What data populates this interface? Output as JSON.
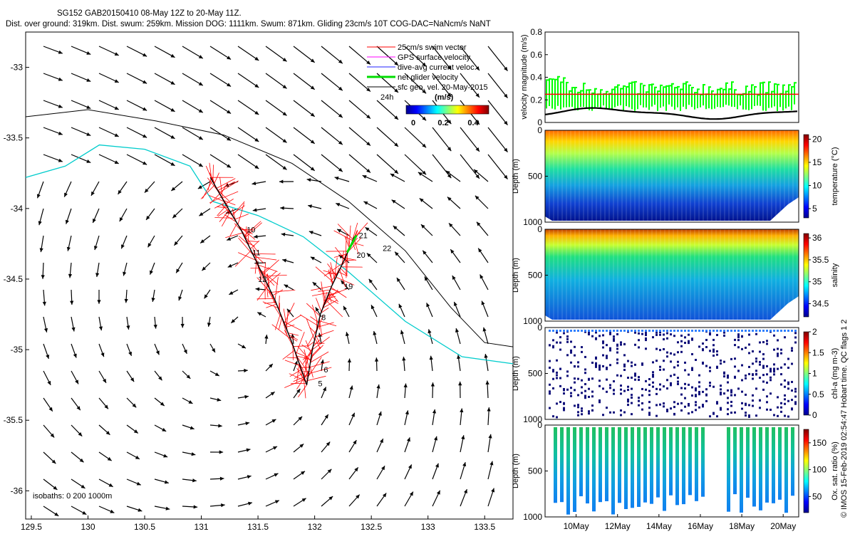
{
  "header": {
    "line1": "SG152 GAB20150410 08-May 12Z to 20-May 11Z.",
    "line2": "Dist. over ground: 319km. Dist. swum: 259km. Mission DOG: 1111km. Swum: 871km. Gliding 23cm/s 10T COG-DAC=NaNcm/s NaNT"
  },
  "side_text": "© IMOS 15-Feb-2019 02:54:47 Hobart time. QC flags 1  2",
  "chart_data": [
    {
      "type": "map",
      "name": "track-map",
      "xlim": [
        129.45,
        133.75
      ],
      "ylim": [
        -36.2,
        -32.75
      ],
      "xticks": [
        "129.5",
        "130",
        "130.5",
        "131",
        "131.5",
        "132",
        "132.5",
        "133",
        "133.5"
      ],
      "yticks": [
        "-33",
        "-33.5",
        "-34",
        "-34.5",
        "-35",
        "-35.5",
        "-36"
      ],
      "xtick_values": [
        129.5,
        130,
        130.5,
        131,
        131.5,
        132,
        132.5,
        133,
        133.5
      ],
      "ytick_values": [
        -33,
        -33.5,
        -34,
        -34.5,
        -35,
        -35.5,
        -36
      ],
      "legend": {
        "items": [
          "25cm/s swim vector",
          "GPS surface velocity",
          "dive-avg current veloc.",
          "net glider velocity",
          "sfc geo. vel. 20-May-2015"
        ],
        "colors": [
          "#ff0000",
          "#ff00ff",
          "#2222ff",
          "#00dd00",
          "#000000"
        ],
        "time_label": "24h",
        "colorbar_unit": "(m/s)",
        "colorbar_ticks": [
          "0",
          "0.2",
          "0.4"
        ]
      },
      "isobaths_label": "isobaths: 0   200   1000m",
      "track_labels": [
        "10",
        "11",
        "12",
        "8",
        "6",
        "5",
        "19",
        "20",
        "21",
        "22"
      ],
      "track": [
        [
          131.08,
          -33.78
        ],
        [
          131.2,
          -33.95
        ],
        [
          131.35,
          -34.15
        ],
        [
          131.5,
          -34.4
        ],
        [
          131.65,
          -34.65
        ],
        [
          131.8,
          -34.95
        ],
        [
          131.93,
          -35.25
        ],
        [
          131.98,
          -35.0
        ],
        [
          132.05,
          -34.75
        ],
        [
          132.15,
          -34.55
        ],
        [
          132.27,
          -34.35
        ],
        [
          132.35,
          -34.2
        ]
      ],
      "isobath_0m": [
        [
          129.45,
          -33.78
        ],
        [
          129.8,
          -33.7
        ],
        [
          130.1,
          -33.55
        ],
        [
          130.5,
          -33.58
        ],
        [
          130.9,
          -33.7
        ],
        [
          131.1,
          -33.95
        ],
        [
          131.5,
          -34.05
        ],
        [
          131.9,
          -34.2
        ],
        [
          132.3,
          -34.45
        ],
        [
          132.8,
          -34.8
        ],
        [
          133.3,
          -35.05
        ],
        [
          133.75,
          -35.1
        ]
      ],
      "isobath_1000m": [
        [
          129.45,
          -33.35
        ],
        [
          130.0,
          -33.3
        ],
        [
          130.6,
          -33.38
        ],
        [
          131.2,
          -33.48
        ],
        [
          131.8,
          -33.68
        ],
        [
          132.3,
          -33.95
        ],
        [
          132.8,
          -34.3
        ],
        [
          133.2,
          -34.7
        ],
        [
          133.5,
          -34.95
        ],
        [
          133.75,
          -34.98
        ]
      ]
    },
    {
      "type": "line",
      "name": "velocity-panel",
      "ylabel": "velocity magnitude (m/s)",
      "ylim": [
        0,
        0.8
      ],
      "yticks": [
        "0",
        "0.2",
        "0.4",
        "0.6",
        "0.8"
      ],
      "ytick_values": [
        0,
        0.2,
        0.4,
        0.6,
        0.8
      ],
      "x_days": [
        8.5,
        20.5
      ],
      "series": [
        {
          "name": "net glider velocity",
          "color": "#00ff00"
        },
        {
          "name": "swim",
          "color": "#ff0000",
          "value": 0.25
        },
        {
          "name": "depth-avg current",
          "color": "#000000"
        }
      ]
    },
    {
      "type": "heatmap",
      "name": "temperature-panel",
      "ylabel": "Depth (m)",
      "yticks": [
        "0",
        "500",
        "1000"
      ],
      "cbar_label": "temperature (°C)",
      "cbar_ticks": [
        "20",
        "15",
        "10",
        "5"
      ],
      "cbar_values": [
        20,
        15,
        10,
        5
      ],
      "cbar_range": [
        3,
        21
      ]
    },
    {
      "type": "heatmap",
      "name": "salinity-panel",
      "ylabel": "Depth (m)",
      "yticks": [
        "0",
        "500",
        "1000"
      ],
      "cbar_label": "salinity",
      "cbar_ticks": [
        "36",
        "35.5",
        "35",
        "34.5"
      ],
      "cbar_values": [
        36,
        35.5,
        35,
        34.5
      ],
      "cbar_range": [
        34.2,
        36.1
      ]
    },
    {
      "type": "scatter",
      "name": "chla-panel",
      "ylabel": "Depth (m)",
      "yticks": [
        "0",
        "500",
        "1000"
      ],
      "cbar_label": "chl-a (mg m-3)",
      "cbar_ticks": [
        "2",
        "1.5",
        "1",
        "0.5",
        "0"
      ],
      "cbar_values": [
        2,
        1.5,
        1,
        0.5,
        0
      ],
      "cbar_range": [
        0,
        2
      ]
    },
    {
      "type": "heatmap",
      "name": "oxygen-panel",
      "ylabel": "Depth (m)",
      "yticks": [
        "0",
        "500",
        "1000"
      ],
      "cbar_label": "Ox. sat. ratio (%)",
      "cbar_ticks": [
        "150",
        "100",
        "50"
      ],
      "cbar_values": [
        150,
        100,
        50
      ],
      "cbar_range": [
        20,
        175
      ],
      "x_tick_labels": [
        "10May",
        "12May",
        "14May",
        "16May",
        "18May",
        "20May"
      ],
      "x_tick_days": [
        10,
        12,
        14,
        16,
        18,
        20
      ]
    }
  ]
}
